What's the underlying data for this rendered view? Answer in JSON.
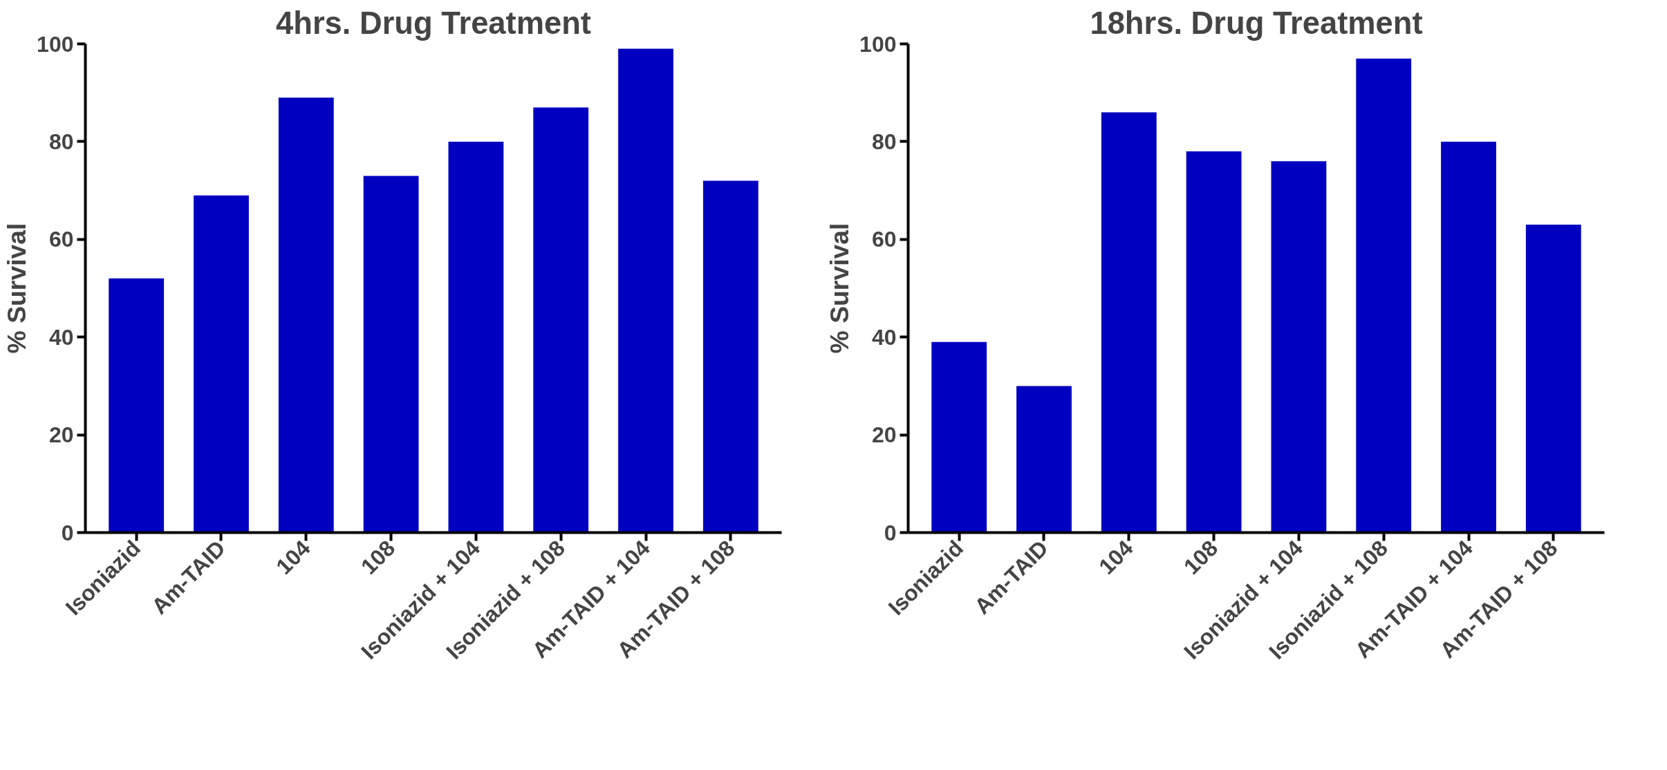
{
  "chart_data": [
    {
      "type": "bar",
      "title": "4hrs. Drug Treatment",
      "ylabel": "% Survival",
      "categories": [
        "Isoniazid",
        "Am-TAID",
        "104",
        "108",
        "Isoniazid + 104",
        "Isoniazid + 108",
        "Am-TAID + 104",
        "Am-TAID + 108"
      ],
      "values": [
        52,
        69,
        89,
        73,
        80,
        87,
        99,
        72
      ],
      "color": "#0000c0",
      "ylim": [
        0,
        100
      ],
      "yticks": [
        0,
        20,
        40,
        60,
        80,
        100
      ],
      "grid": false
    },
    {
      "type": "bar",
      "title": "18hrs. Drug Treatment",
      "ylabel": "% Survival",
      "categories": [
        "Isoniazid",
        "Am-TAID",
        "104",
        "108",
        "Isoniazid + 104",
        "Isoniazid + 108",
        "Am-TAID + 104",
        "Am-TAID + 108"
      ],
      "values": [
        39,
        30,
        86,
        78,
        76,
        97,
        80,
        63
      ],
      "color": "#0000c0",
      "ylim": [
        0,
        100
      ],
      "yticks": [
        0,
        20,
        40,
        60,
        80,
        100
      ],
      "grid": false
    }
  ]
}
